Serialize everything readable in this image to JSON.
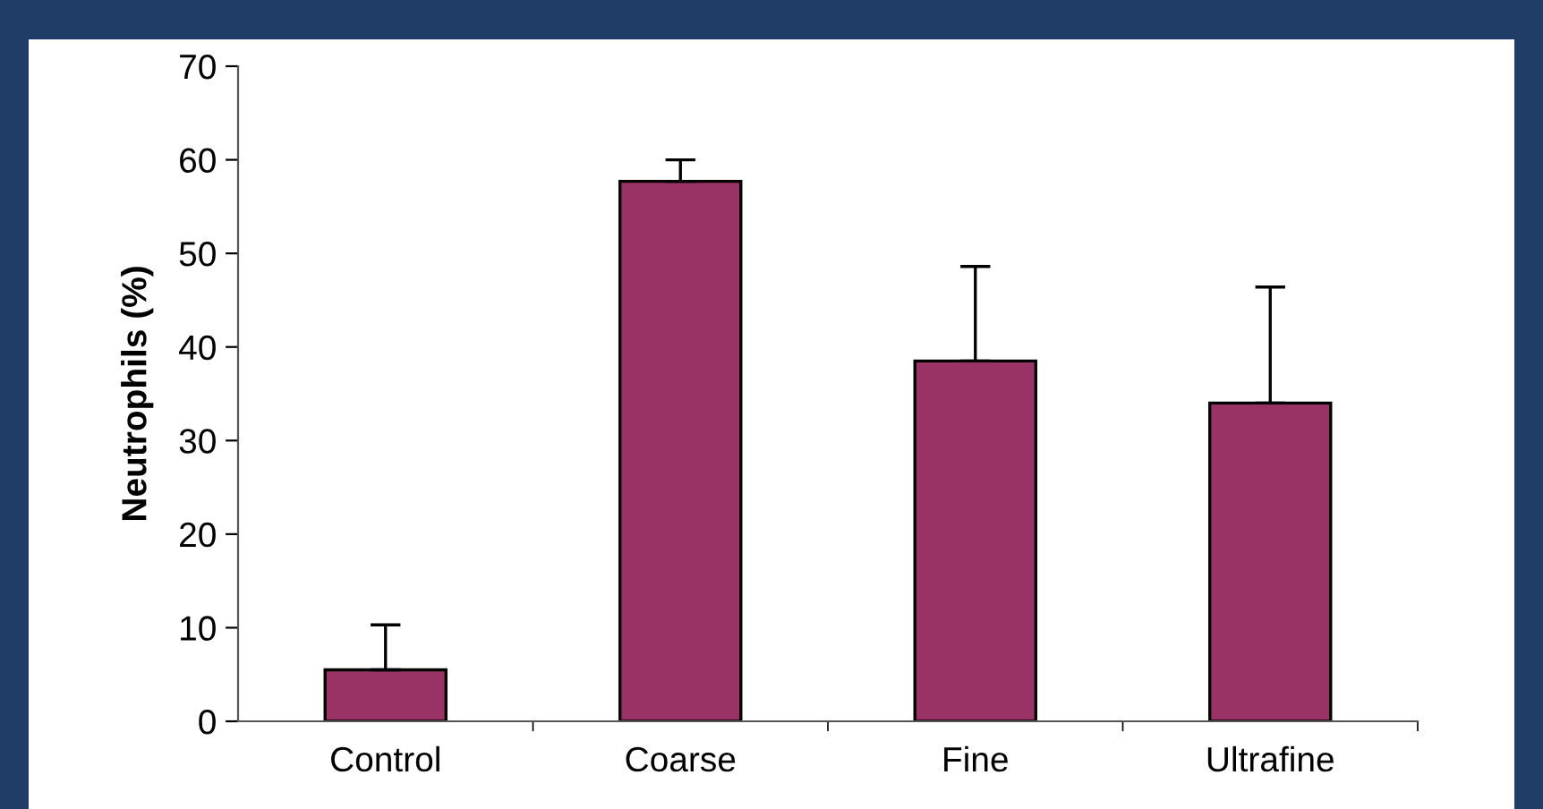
{
  "chart_data": {
    "type": "bar",
    "ylabel": "Neutrophils (%)",
    "categories": [
      "Control",
      "Coarse",
      "Fine",
      "Ultrafine"
    ],
    "values": [
      5.5,
      57.7,
      38.5,
      34
    ],
    "errors": [
      [
        5.5,
        10.3
      ],
      [
        57.7,
        60
      ],
      [
        38.5,
        48.6
      ],
      [
        34,
        46.4
      ]
    ],
    "color": "#993366",
    "ylim": [
      0,
      70
    ],
    "yticks": [
      0,
      10,
      20,
      30,
      40,
      50,
      60,
      70
    ],
    "grid": false
  }
}
